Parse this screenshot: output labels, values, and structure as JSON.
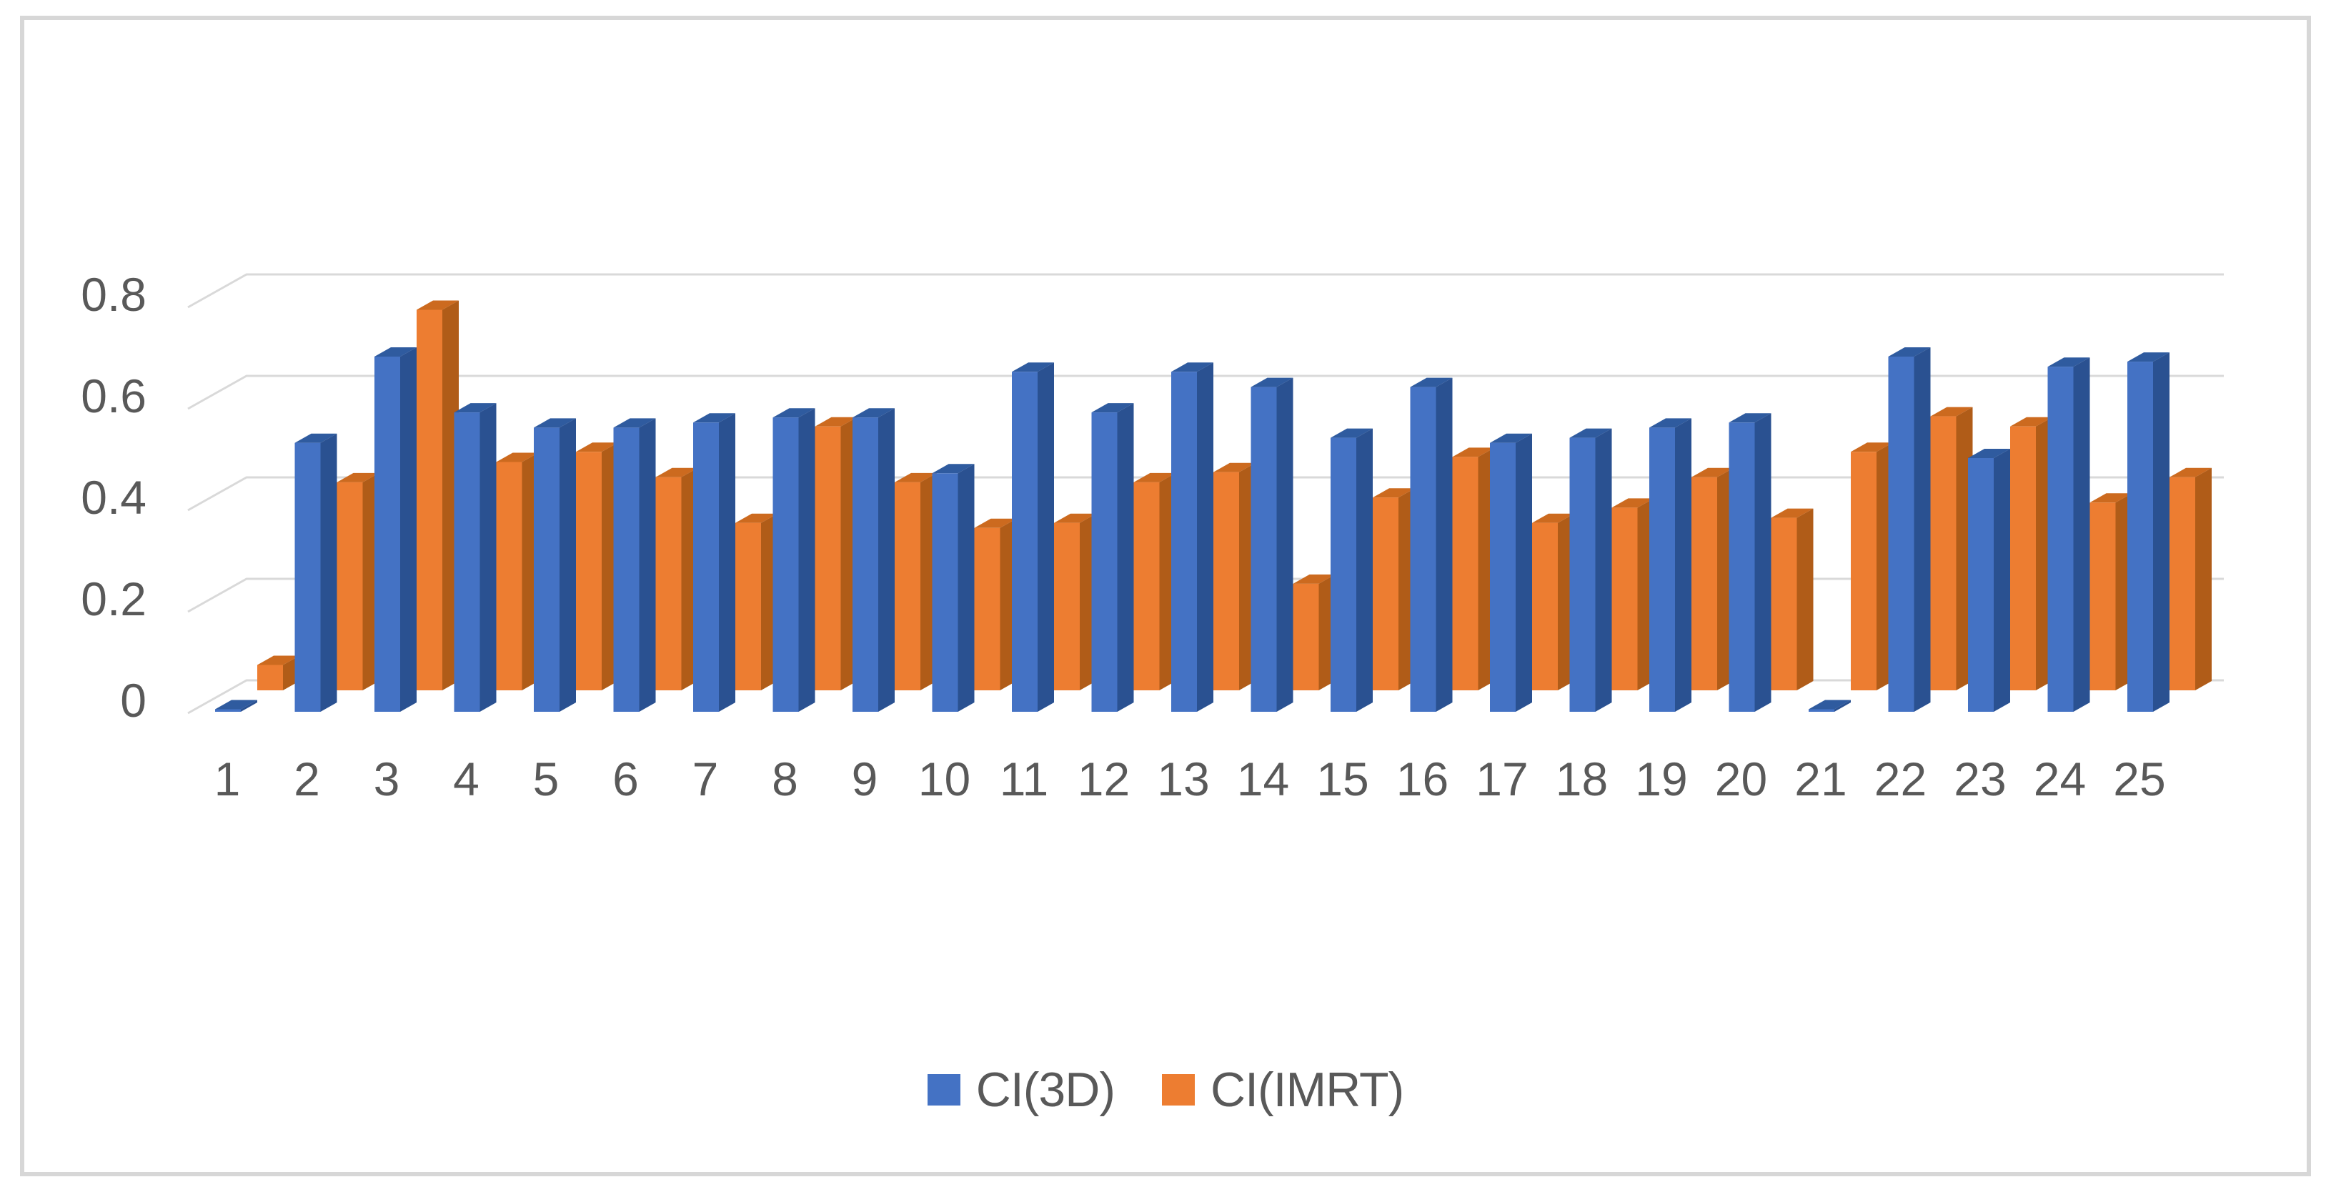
{
  "page": {
    "background": "#ffffff",
    "frame_border_color": "#d7d7d7"
  },
  "chart_data": {
    "type": "bar",
    "style": "3d-clustered-column",
    "title": "",
    "xlabel": "",
    "ylabel": "",
    "categories": [
      "1",
      "2",
      "3",
      "4",
      "5",
      "6",
      "7",
      "8",
      "9",
      "10",
      "11",
      "12",
      "13",
      "14",
      "15",
      "16",
      "17",
      "18",
      "19",
      "20",
      "21",
      "22",
      "23",
      "24",
      "25"
    ],
    "series": [
      {
        "name": "CI(3D)",
        "color": "#4472C4",
        "color_top": "#2F5B9F",
        "color_side": "#2A5191",
        "values": [
          0.005,
          0.53,
          0.7,
          0.59,
          0.56,
          0.56,
          0.57,
          0.58,
          0.58,
          0.47,
          0.67,
          0.59,
          0.67,
          0.64,
          0.54,
          0.64,
          0.53,
          0.54,
          0.56,
          0.57,
          0.005,
          0.7,
          0.5,
          0.68,
          0.69
        ]
      },
      {
        "name": "CI(IMRT)",
        "color": "#ED7D31",
        "color_top": "#CC6A1F",
        "color_side": "#B05C18",
        "values": [
          0.05,
          0.41,
          0.75,
          0.45,
          0.47,
          0.42,
          0.33,
          0.52,
          0.41,
          0.32,
          0.33,
          0.41,
          0.43,
          0.21,
          0.38,
          0.46,
          0.33,
          0.36,
          0.42,
          0.34,
          0.47,
          0.54,
          0.52,
          0.37,
          0.42
        ]
      }
    ],
    "yticks": [
      {
        "value": 0.0,
        "label": "0"
      },
      {
        "value": 0.2,
        "label": "0.2"
      },
      {
        "value": 0.4,
        "label": "0.4"
      },
      {
        "value": 0.6,
        "label": "0.6"
      },
      {
        "value": 0.8,
        "label": "0.8"
      }
    ],
    "ylim": [
      0,
      0.8
    ],
    "grid": true,
    "gridline_color": "#d9d9d9",
    "axis_text_color": "#595959",
    "legend_position": "bottom-center"
  },
  "legend": {
    "items": [
      {
        "label": "CI(3D)",
        "color": "#4472C4"
      },
      {
        "label": "CI(IMRT)",
        "color": "#ED7D31"
      }
    ]
  }
}
